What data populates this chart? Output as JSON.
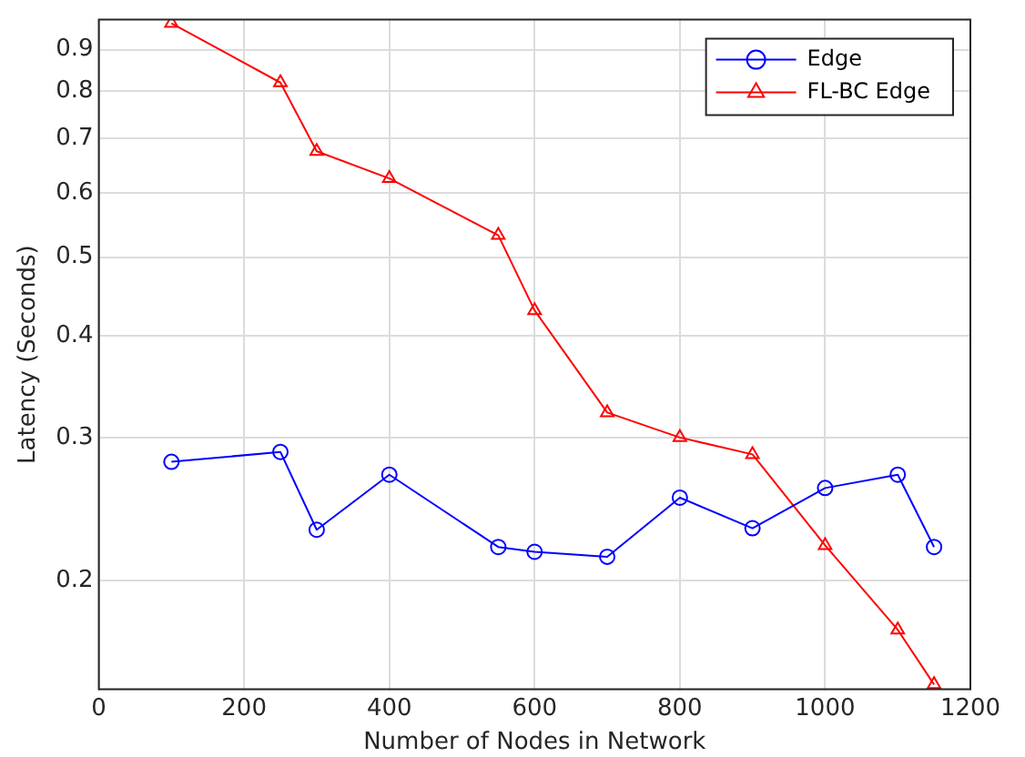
{
  "chart_data": {
    "type": "line",
    "xlabel": "Number of Nodes in Network",
    "ylabel": "Latency (Seconds)",
    "x": [
      100,
      250,
      300,
      400,
      550,
      600,
      700,
      800,
      900,
      1000,
      1100,
      1150
    ],
    "series": [
      {
        "name": "Edge",
        "color": "#0000ff",
        "marker": "circle",
        "values": [
          0.28,
          0.288,
          0.231,
          0.27,
          0.22,
          0.217,
          0.214,
          0.253,
          0.232,
          0.26,
          0.27,
          0.22
        ]
      },
      {
        "name": "FL-BC Edge",
        "color": "#ff0000",
        "marker": "triangle",
        "values": [
          0.97,
          0.82,
          0.675,
          0.625,
          0.532,
          0.43,
          0.322,
          0.3,
          0.286,
          0.221,
          0.174,
          0.149
        ]
      }
    ],
    "xlim": [
      0,
      1200
    ],
    "xticks": [
      0,
      200,
      400,
      600,
      800,
      1000,
      1200
    ],
    "ylim": [
      0.147,
      0.98
    ],
    "yticks": [
      0.2,
      0.3,
      0.4,
      0.5,
      0.6,
      0.7,
      0.8,
      0.9
    ],
    "log": "y",
    "grid": true,
    "legend": "top right",
    "line_style": "solid"
  }
}
